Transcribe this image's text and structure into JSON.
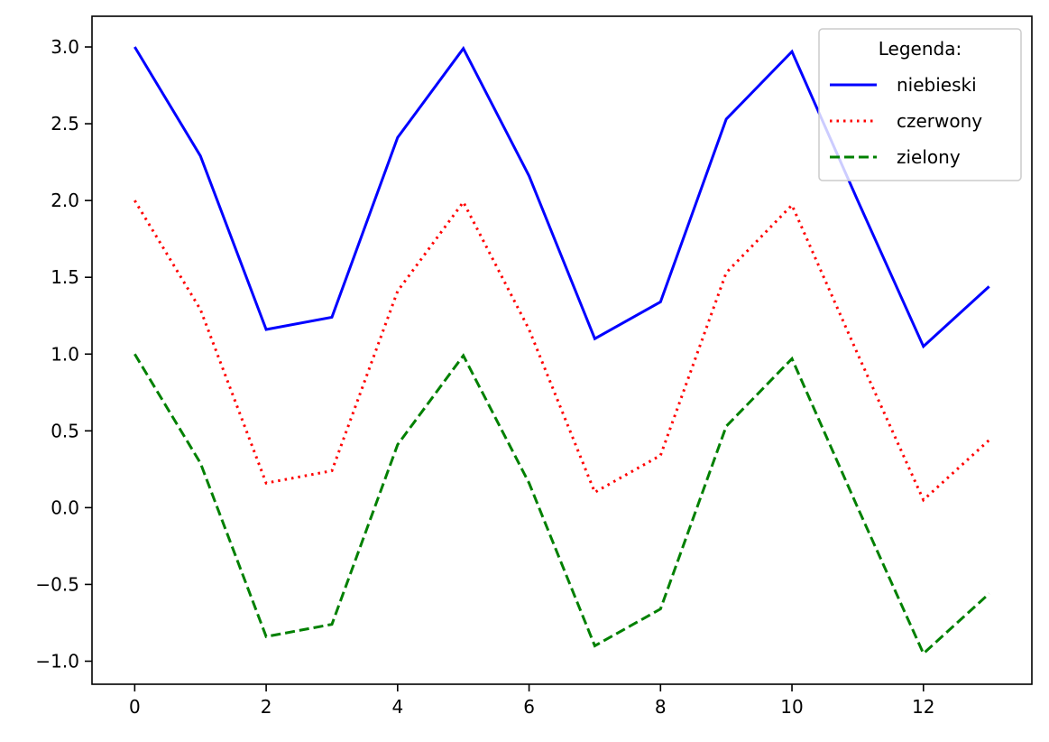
{
  "chart_data": {
    "type": "line",
    "x": [
      0,
      1,
      2,
      3,
      4,
      5,
      6,
      7,
      8,
      9,
      10,
      11,
      12,
      13
    ],
    "xlim": [
      -0.65,
      13.65
    ],
    "ylim": [
      -1.15,
      3.2
    ],
    "xticks": [
      0,
      2,
      4,
      6,
      8,
      10,
      12
    ],
    "yticks": [
      -1.0,
      -0.5,
      0.0,
      0.5,
      1.0,
      1.5,
      2.0,
      2.5,
      3.0
    ],
    "xtick_labels": [
      "0",
      "2",
      "4",
      "6",
      "8",
      "10",
      "12"
    ],
    "ytick_labels": [
      "−1.0",
      "−0.5",
      "0.0",
      "0.5",
      "1.0",
      "1.5",
      "2.0",
      "2.5",
      "3.0"
    ],
    "grid": false,
    "legend": {
      "title": "Legenda:",
      "placement": "top-right"
    },
    "series": [
      {
        "name": "niebieski",
        "color": "#0000ff",
        "linestyle": "solid",
        "values": [
          3.0,
          2.29,
          1.16,
          1.24,
          2.41,
          2.99,
          2.16,
          1.1,
          1.34,
          2.53,
          2.97,
          2.0,
          1.05,
          1.44
        ]
      },
      {
        "name": "czerwony",
        "color": "#ff0000",
        "linestyle": "dotted",
        "values": [
          2.0,
          1.29,
          0.16,
          0.24,
          1.41,
          1.99,
          1.16,
          0.1,
          0.34,
          1.53,
          1.97,
          1.0,
          0.05,
          0.44
        ]
      },
      {
        "name": "zielony",
        "color": "#008000",
        "linestyle": "dashed",
        "values": [
          1.0,
          0.29,
          -0.84,
          -0.76,
          0.41,
          0.99,
          0.16,
          -0.9,
          -0.66,
          0.53,
          0.97,
          0.0,
          -0.95,
          -0.56
        ]
      }
    ]
  }
}
